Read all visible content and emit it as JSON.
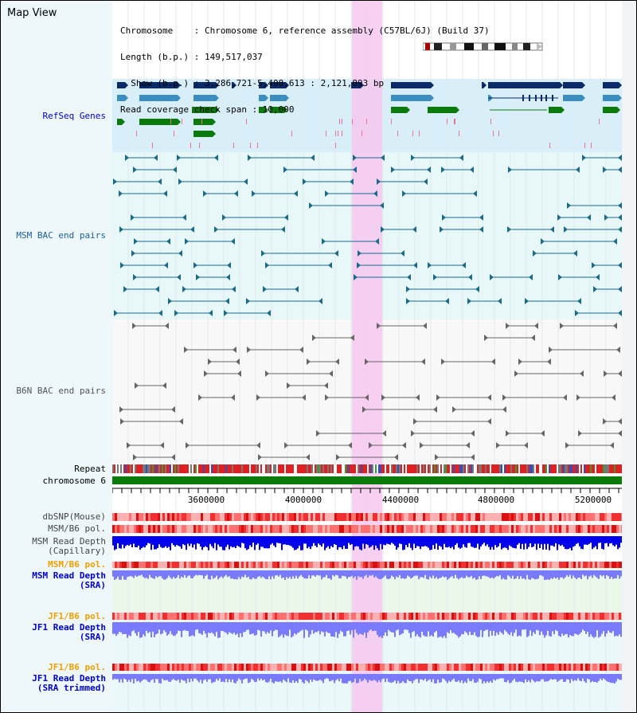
{
  "title": "Map View",
  "info": {
    "chromosome": "Chromosome    : Chromosome 6, reference assembly (C57BL/6J) (Build 37)",
    "length": "Length (b.p.) : 149,517,037",
    "show": "  Show (b.p.) : 3,286,721-5,408,613 : 2,121,893 bp",
    "coverage": "Read coverage check span : 10,000"
  },
  "tracks": {
    "refseq": "RefSeq Genes",
    "msm_bac": "MSM BAC end pairs",
    "b6n_bac": "B6N BAC end pairs",
    "repeat": "Repeat",
    "chromosome": "chromosome 6",
    "dbsnp": "dbSNP(Mouse)",
    "msm_b6_pol": "MSM/B6 pol.",
    "msm_read_depth_cap": "MSM Read Depth\n(Capillary)",
    "msm_b6_pol2": "MSM/B6 pol.",
    "msm_read_depth_sra": "MSM Read Depth\n(SRA)",
    "jf1_b6_pol": "JF1/B6 pol.",
    "jf1_read_depth_sra": "JF1 Read Depth\n(SRA)",
    "jf1_b6_pol2": "JF1/B6 pol.",
    "jf1_read_depth_trim": "JF1 Read Depth\n(SRA trimmed)"
  },
  "axis": {
    "ticks": [
      "3600000",
      "4000000",
      "4400000",
      "4800000",
      "5200000"
    ]
  },
  "colors": {
    "highlight": "#f6c8f0",
    "refseq_dark": "#0a2a6a",
    "refseq_mid": "#3a8fc0",
    "refseq_green": "#0a7a0a",
    "msm_line": "#1a6a8a",
    "b6n_line": "#666666",
    "chromosome": "#0a7a0a",
    "depth_dark": "#0000ee",
    "depth_light": "#7a7aff"
  }
}
